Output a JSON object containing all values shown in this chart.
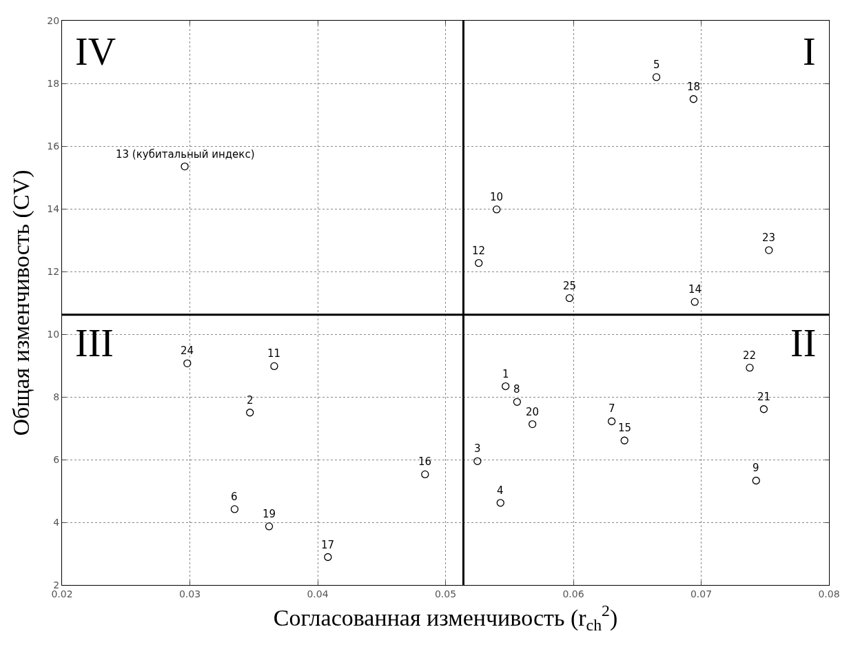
{
  "chart_data": {
    "type": "scatter",
    "xlabel": "Согласованная изменчивость (r$_{ch}$$^{2}$)",
    "ylabel": "Общая изменчивость (CV)",
    "annotations": [
      "I",
      "II",
      "III",
      "IV",
      {
        "text": "1",
        "x": 0.0547,
        "y": 8.34
      },
      {
        "text": "2",
        "x": 0.0347,
        "y": 7.5
      },
      {
        "text": "3",
        "x": 0.0525,
        "y": 5.95
      },
      {
        "text": "4",
        "x": 0.0543,
        "y": 4.62
      },
      {
        "text": "5",
        "x": 0.0665,
        "y": 18.2
      },
      {
        "text": "6",
        "x": 0.0335,
        "y": 4.42
      },
      {
        "text": "7",
        "x": 0.063,
        "y": 7.22
      },
      {
        "text": "8",
        "x": 0.0556,
        "y": 7.84
      },
      {
        "text": "9",
        "x": 0.0743,
        "y": 5.33
      },
      {
        "text": "10",
        "x": 0.054,
        "y": 13.98
      },
      {
        "text": "11",
        "x": 0.0366,
        "y": 8.98
      },
      {
        "text": "12",
        "x": 0.0526,
        "y": 12.27
      },
      {
        "text": "13 (кубитальный индекс)",
        "x": 0.0296,
        "y": 15.35
      },
      {
        "text": "14",
        "x": 0.0695,
        "y": 11.03
      },
      {
        "text": "15",
        "x": 0.064,
        "y": 6.61
      },
      {
        "text": "16",
        "x": 0.0484,
        "y": 5.53
      },
      {
        "text": "17",
        "x": 0.0408,
        "y": 2.89
      },
      {
        "text": "18",
        "x": 0.0694,
        "y": 17.5
      },
      {
        "text": "19",
        "x": 0.0362,
        "y": 3.87
      },
      {
        "text": "20",
        "x": 0.0568,
        "y": 7.13
      },
      {
        "text": "21",
        "x": 0.0749,
        "y": 7.61
      },
      {
        "text": "22",
        "x": 0.0738,
        "y": 8.93
      },
      {
        "text": "23",
        "x": 0.0753,
        "y": 12.68
      },
      {
        "text": "24",
        "x": 0.0298,
        "y": 9.07
      },
      {
        "text": "25",
        "x": 0.0597,
        "y": 11.15
      }
    ],
    "x": [
      0.0547,
      0.0347,
      0.0525,
      0.0543,
      0.0665,
      0.0335,
      0.063,
      0.0556,
      0.0743,
      0.054,
      0.0366,
      0.0526,
      0.0296,
      0.0695,
      0.064,
      0.0484,
      0.0408,
      0.0694,
      0.0362,
      0.0568,
      0.0749,
      0.0738,
      0.0753,
      0.0298,
      0.0597
    ],
    "values": [
      8.34,
      7.5,
      5.95,
      4.62,
      18.2,
      4.42,
      7.22,
      7.84,
      5.33,
      13.98,
      8.98,
      12.27,
      15.35,
      11.03,
      6.61,
      5.53,
      2.89,
      17.5,
      3.87,
      7.13,
      7.61,
      8.93,
      12.68,
      9.07,
      11.15
    ],
    "color": "#000000",
    "marker": "circle",
    "xlim": [
      0.02,
      0.08
    ],
    "xticks": [
      0.02,
      0.03,
      0.04,
      0.05,
      0.06,
      0.07,
      0.08
    ],
    "ylim": [
      2,
      20
    ],
    "yticks": [
      2,
      4,
      6,
      8,
      10,
      12,
      14,
      16,
      18,
      20
    ],
    "grid": true,
    "line_style": "dotted",
    "ref_lines": [
      {
        "axis": "x",
        "value": 0.0514,
        "color": "#000000"
      },
      {
        "axis": "y",
        "value": 10.62,
        "color": "#000000"
      }
    ]
  }
}
